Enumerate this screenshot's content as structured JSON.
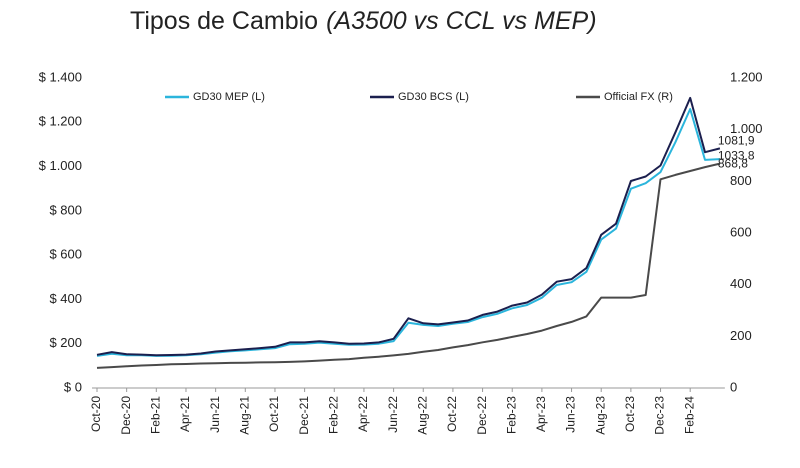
{
  "chart_data": {
    "type": "line",
    "title": "Tipos de Cambio",
    "subtitle": "(A3500 vs CCL vs MEP)",
    "categories": [
      "Oct-20",
      null,
      "Dec-20",
      null,
      "Feb-21",
      null,
      "Apr-21",
      null,
      "Jun-21",
      null,
      "Aug-21",
      null,
      "Oct-21",
      null,
      "Dec-21",
      null,
      "Feb-22",
      null,
      "Apr-22",
      null,
      "Jun-22",
      null,
      "Aug-22",
      null,
      "Oct-22",
      null,
      "Dec-22",
      null,
      "Feb-23",
      null,
      "Apr-23",
      null,
      "Jun-23",
      null,
      "Aug-23",
      null,
      "Oct-23",
      null,
      "Dec-23",
      null,
      "Feb-24",
      null,
      null
    ],
    "series": [
      {
        "name": "GD30 MEP (L)",
        "color": "#2bb5dc",
        "axis": "y",
        "values": [
          145,
          155,
          148,
          148,
          145,
          146,
          148,
          152,
          160,
          166,
          170,
          175,
          180,
          198,
          200,
          205,
          200,
          195,
          196,
          200,
          212,
          295,
          285,
          280,
          290,
          298,
          320,
          335,
          360,
          375,
          408,
          465,
          478,
          525,
          670,
          720,
          900,
          925,
          975,
          1110,
          1260,
          1030,
          1033.8
        ],
        "value_labels": [
          null,
          null,
          null,
          null,
          null,
          null,
          null,
          null,
          null,
          null,
          null,
          null,
          null,
          null,
          null,
          null,
          null,
          null,
          null,
          null,
          null,
          null,
          null,
          null,
          null,
          null,
          null,
          null,
          null,
          null,
          null,
          null,
          null,
          null,
          null,
          null,
          null,
          null,
          null,
          null,
          null,
          null,
          "1033,8"
        ]
      },
      {
        "name": "GD30 BCS (L)",
        "color": "#1b1f4e",
        "axis": "y",
        "values": [
          150,
          162,
          152,
          151,
          148,
          149,
          151,
          156,
          165,
          170,
          175,
          180,
          186,
          206,
          206,
          211,
          206,
          200,
          201,
          206,
          222,
          315,
          292,
          287,
          296,
          305,
          330,
          345,
          372,
          386,
          422,
          480,
          492,
          542,
          692,
          742,
          935,
          955,
          1005,
          1155,
          1310,
          1065,
          1081.9
        ],
        "value_labels": [
          null,
          null,
          null,
          null,
          null,
          null,
          null,
          null,
          null,
          null,
          null,
          null,
          null,
          null,
          null,
          null,
          null,
          null,
          null,
          null,
          null,
          null,
          null,
          null,
          null,
          null,
          null,
          null,
          null,
          null,
          null,
          null,
          null,
          null,
          null,
          null,
          null,
          null,
          null,
          null,
          null,
          null,
          "1081,9"
        ]
      },
      {
        "name": "Official FX (R)",
        "color": "#4a4a4a",
        "axis": "y2",
        "values": [
          78,
          81,
          84,
          87,
          89,
          92,
          93,
          95,
          96,
          97,
          98,
          99,
          100,
          101,
          103,
          106,
          109,
          112,
          117,
          121,
          126,
          132,
          140,
          147,
          157,
          166,
          177,
          186,
          198,
          209,
          222,
          240,
          256,
          277,
          350,
          350,
          350,
          360,
          808,
          825,
          840,
          855,
          868.8
        ],
        "value_labels": [
          null,
          null,
          null,
          null,
          null,
          null,
          null,
          null,
          null,
          null,
          null,
          null,
          null,
          null,
          null,
          null,
          null,
          null,
          null,
          null,
          null,
          null,
          null,
          null,
          null,
          null,
          null,
          null,
          null,
          null,
          null,
          null,
          null,
          null,
          null,
          null,
          null,
          null,
          null,
          null,
          null,
          null,
          "868,8"
        ]
      }
    ],
    "ylim": [
      0,
      1400
    ],
    "yticks": [
      {
        "value": 0,
        "label": "$ 0"
      },
      {
        "value": 200,
        "label": "$ 200"
      },
      {
        "value": 400,
        "label": "$ 400"
      },
      {
        "value": 600,
        "label": "$ 600"
      },
      {
        "value": 800,
        "label": "$ 800"
      },
      {
        "value": 1000,
        "label": "$ 1.000"
      },
      {
        "value": 1200,
        "label": "$ 1.200"
      },
      {
        "value": 1400,
        "label": "$ 1.400"
      }
    ],
    "y2lim": [
      0,
      1200
    ],
    "y2ticks": [
      0,
      200,
      400,
      600,
      800,
      {
        "value": 1000,
        "label": "1.000"
      },
      {
        "value": 1200,
        "label": "1.200"
      }
    ],
    "grid": false,
    "legend": "top"
  }
}
